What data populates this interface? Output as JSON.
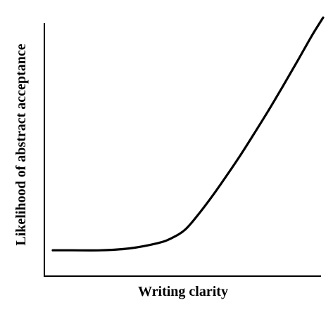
{
  "chart_data": {
    "type": "line",
    "title": "",
    "xlabel": "Writing clarity",
    "ylabel": "Likelihood of abstract acceptance",
    "xticks": [],
    "yticks": [],
    "grid": false,
    "legend": "none",
    "xlim": [
      0,
      1
    ],
    "ylim": [
      0,
      1
    ],
    "series": [
      {
        "color": "#000000",
        "x": [
          0.03,
          0.1,
          0.2,
          0.3,
          0.4,
          0.45,
          0.5,
          0.55,
          0.6,
          0.65,
          0.7,
          0.75,
          0.8,
          0.85,
          0.9,
          0.95,
          0.99
        ],
        "y": [
          0.1,
          0.1,
          0.1,
          0.107,
          0.127,
          0.146,
          0.18,
          0.243,
          0.315,
          0.393,
          0.474,
          0.56,
          0.648,
          0.74,
          0.834,
          0.93,
          1.0
        ]
      }
    ]
  }
}
